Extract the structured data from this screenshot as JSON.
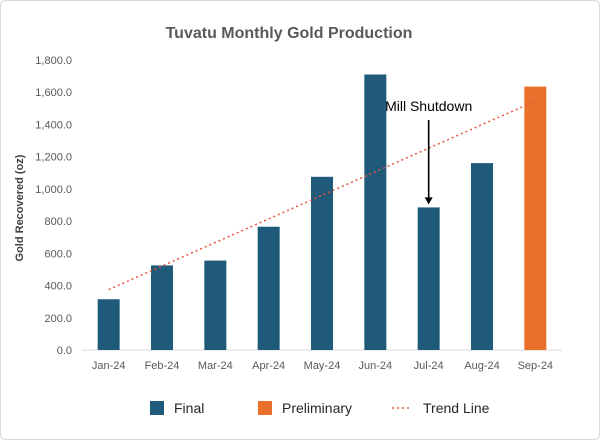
{
  "chart_data": {
    "type": "bar",
    "title": "Tuvatu Monthly Gold Production",
    "xlabel": "",
    "ylabel": "Gold Recovered (oz)",
    "ylim": [
      0,
      1800
    ],
    "yticks": [
      "0.0",
      "200.0",
      "400.0",
      "600.0",
      "800.0",
      "1,000.0",
      "1,200.0",
      "1,400.0",
      "1,600.0",
      "1,800.0"
    ],
    "categories": [
      "Jan-24",
      "Feb-24",
      "Mar-24",
      "Apr-24",
      "May-24",
      "Jun-24",
      "Jul-24",
      "Aug-24",
      "Sep-24"
    ],
    "series": [
      {
        "name": "Final",
        "color": "#1f5a7a",
        "values": [
          315,
          525,
          555,
          765,
          1075,
          1710,
          885,
          1160,
          null
        ]
      },
      {
        "name": "Preliminary",
        "color": "#e8702a",
        "values": [
          null,
          null,
          null,
          null,
          null,
          null,
          null,
          null,
          1635
        ]
      }
    ],
    "trend_line": {
      "name": "Trend Line",
      "color": "#e8553a",
      "style": "dotted",
      "start": 375,
      "end": 1545
    },
    "annotation": {
      "text": "Mill Shutdown",
      "category": "Jul-24"
    },
    "grid": false,
    "legend": {
      "placement": "bottom",
      "items": [
        "Final",
        "Preliminary",
        "Trend Line"
      ]
    }
  }
}
